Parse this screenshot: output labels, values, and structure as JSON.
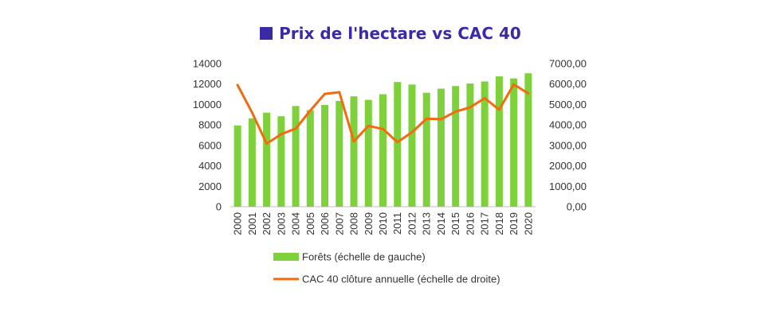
{
  "title": "Prix de l'hectare vs CAC 40",
  "colors": {
    "title": "#3b2aa6",
    "bars": "#7fd13b",
    "line": "#f26b0f",
    "axis": "#bfbfbf"
  },
  "chart_data": {
    "type": "bar",
    "title": "Prix de l'hectare vs CAC 40",
    "categories": [
      "2000",
      "2001",
      "2002",
      "2003",
      "2004",
      "2005",
      "2006",
      "2007",
      "2008",
      "2009",
      "2010",
      "2011",
      "2012",
      "2013",
      "2014",
      "2015",
      "2016",
      "2017",
      "2018",
      "2019",
      "2020"
    ],
    "series": [
      {
        "name": "Forêts (échelle de gauche)",
        "type": "bar",
        "axis": "left",
        "values": [
          7950,
          8650,
          9200,
          8850,
          9850,
          9450,
          9950,
          10350,
          10800,
          10450,
          11000,
          12200,
          11950,
          11150,
          11550,
          11800,
          12050,
          12250,
          12750,
          12550,
          13050
        ]
      },
      {
        "name": "CAC 40 clôture annuelle (échelle de droite)",
        "type": "line",
        "axis": "right",
        "values": [
          5950,
          4600,
          3080,
          3550,
          3820,
          4700,
          5520,
          5600,
          3200,
          3950,
          3800,
          3160,
          3640,
          4300,
          4280,
          4650,
          4860,
          5310,
          4750,
          5980,
          5540
        ]
      }
    ],
    "y_left": {
      "ylim": [
        0,
        14000
      ],
      "ticks": [
        "0",
        "2000",
        "4000",
        "6000",
        "8000",
        "10000",
        "12000",
        "14000"
      ]
    },
    "y_right": {
      "ylim": [
        0,
        7000
      ],
      "ticks": [
        "0,00",
        "1000,00",
        "2000,00",
        "3000,00",
        "4000,00",
        "5000,00",
        "6000,00",
        "7000,00"
      ]
    },
    "grid": false,
    "legend_placement": "bottom"
  }
}
